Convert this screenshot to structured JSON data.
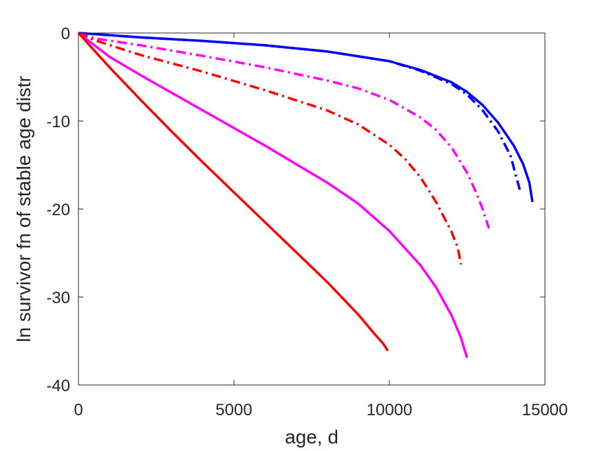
{
  "chart_data": {
    "type": "line",
    "xlabel": "age, d",
    "ylabel": "ln survivor fn of stable age distr",
    "xlim": [
      0,
      15000
    ],
    "ylim": [
      -40,
      0
    ],
    "xticks": [
      0,
      5000,
      10000,
      15000
    ],
    "yticks": [
      0,
      -10,
      -20,
      -30,
      -40
    ],
    "grid": false,
    "legend": "none",
    "series": [
      {
        "color": "#0000ff",
        "style": "solid",
        "x": [
          0,
          2000,
          4000,
          6000,
          8000,
          10000,
          11000,
          12000,
          12500,
          13000,
          13500,
          14000,
          14300,
          14500,
          14600
        ],
        "y": [
          0,
          -0.5,
          -0.9,
          -1.4,
          -2.1,
          -3.2,
          -4.2,
          -5.6,
          -6.7,
          -8.2,
          -10.2,
          -12.8,
          -14.9,
          -17.0,
          -19.2
        ]
      },
      {
        "color": "#0000ff",
        "style": "dashdot",
        "x": [
          0,
          2000,
          4000,
          6000,
          8000,
          10000,
          11000,
          12000,
          12500,
          13000,
          13500,
          13900,
          14200
        ],
        "y": [
          0,
          -0.5,
          -0.9,
          -1.4,
          -2.1,
          -3.2,
          -4.3,
          -5.8,
          -7.0,
          -8.8,
          -11.2,
          -14.0,
          -17.9
        ]
      },
      {
        "color": "#ff00ff",
        "style": "dashdot",
        "x": [
          0,
          500,
          2000,
          4000,
          6000,
          8000,
          9000,
          10000,
          11000,
          11500,
          12000,
          12500,
          12800,
          13000,
          13200
        ],
        "y": [
          0,
          -0.6,
          -1.4,
          -2.6,
          -3.9,
          -5.4,
          -6.3,
          -7.6,
          -9.6,
          -11.0,
          -13.0,
          -15.9,
          -18.2,
          -20.0,
          -22.2
        ]
      },
      {
        "color": "#ff0000",
        "style": "dashdot",
        "x": [
          0,
          500,
          2000,
          4000,
          6000,
          8000,
          9000,
          10000,
          10500,
          11000,
          11500,
          12000,
          12200,
          12300
        ],
        "y": [
          0,
          -0.8,
          -2.5,
          -4.4,
          -6.5,
          -8.8,
          -10.4,
          -12.7,
          -14.3,
          -16.4,
          -19.2,
          -22.6,
          -24.4,
          -26.3
        ]
      },
      {
        "color": "#ff00ff",
        "style": "solid",
        "x": [
          0,
          1000,
          2000,
          4000,
          6000,
          8000,
          9000,
          10000,
          11000,
          11500,
          12000,
          12300,
          12400,
          12500
        ],
        "y": [
          0,
          -2.7,
          -4.8,
          -8.8,
          -12.8,
          -17.0,
          -19.4,
          -22.5,
          -26.4,
          -28.9,
          -32.1,
          -34.6,
          -35.8,
          -36.9
        ]
      },
      {
        "color": "#ff0000",
        "style": "solid",
        "x": [
          0,
          1000,
          2000,
          3000,
          4000,
          5000,
          6000,
          7000,
          8000,
          9000,
          9500,
          9800,
          9950
        ],
        "y": [
          0,
          -3.9,
          -7.6,
          -11.2,
          -14.7,
          -18.1,
          -21.5,
          -24.9,
          -28.3,
          -32.0,
          -34.1,
          -35.3,
          -36.1
        ]
      }
    ]
  }
}
